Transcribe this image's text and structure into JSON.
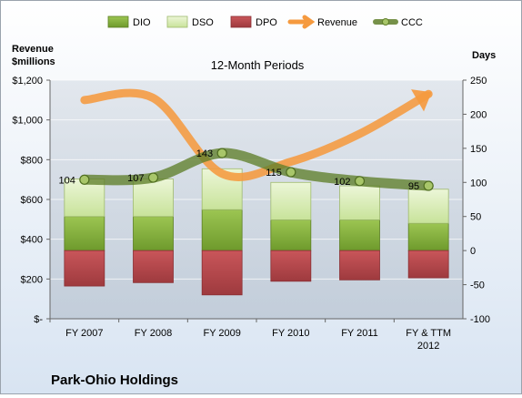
{
  "chart_data": {
    "type": "bar",
    "title": "12-Month Periods",
    "footer_title": "Park-Ohio Holdings",
    "left_axis": {
      "label_line1": "Revenue",
      "label_line2": "$millions",
      "ylim": [
        0,
        1200
      ],
      "ticks": [
        0,
        200,
        400,
        600,
        800,
        1000,
        1200
      ],
      "tick_labels": [
        "$-",
        "$200",
        "$400",
        "$600",
        "$800",
        "$1,000",
        "$1,200"
      ]
    },
    "right_axis": {
      "label": "Days",
      "ylim": [
        -100,
        250
      ],
      "ticks": [
        -100,
        -50,
        0,
        50,
        100,
        150,
        200,
        250
      ],
      "tick_labels": [
        "-100",
        "-50",
        "0",
        "50",
        "100",
        "150",
        "200",
        "250"
      ]
    },
    "categories": [
      "FY 2007",
      "FY 2008",
      "FY 2009",
      "FY 2010",
      "FY 2011",
      "FY & TTM 2012"
    ],
    "legend_position": "top",
    "series": [
      {
        "name": "DIO",
        "kind": "stacked-bar",
        "axis": "right",
        "color": "#7ea83a",
        "values": [
          50,
          50,
          60,
          45,
          45,
          40
        ]
      },
      {
        "name": "DSO",
        "kind": "stacked-bar",
        "axis": "right",
        "color": "#d3e8a8",
        "values": [
          55,
          55,
          60,
          55,
          50,
          50
        ]
      },
      {
        "name": "DPO",
        "kind": "stacked-bar-negative",
        "axis": "right",
        "color": "#b8454a",
        "values": [
          -52,
          -47,
          -65,
          -45,
          -43,
          -40
        ]
      },
      {
        "name": "Revenue",
        "kind": "line",
        "axis": "left",
        "color": "#f59a3f",
        "values": [
          1100,
          1110,
          730,
          790,
          930,
          1130
        ]
      },
      {
        "name": "CCC",
        "kind": "line",
        "axis": "right",
        "color": "#5f7f2a",
        "values": [
          104,
          107,
          143,
          115,
          102,
          95
        ],
        "data_labels": [
          "104",
          "107",
          "143",
          "115",
          "102",
          "95"
        ]
      }
    ]
  }
}
